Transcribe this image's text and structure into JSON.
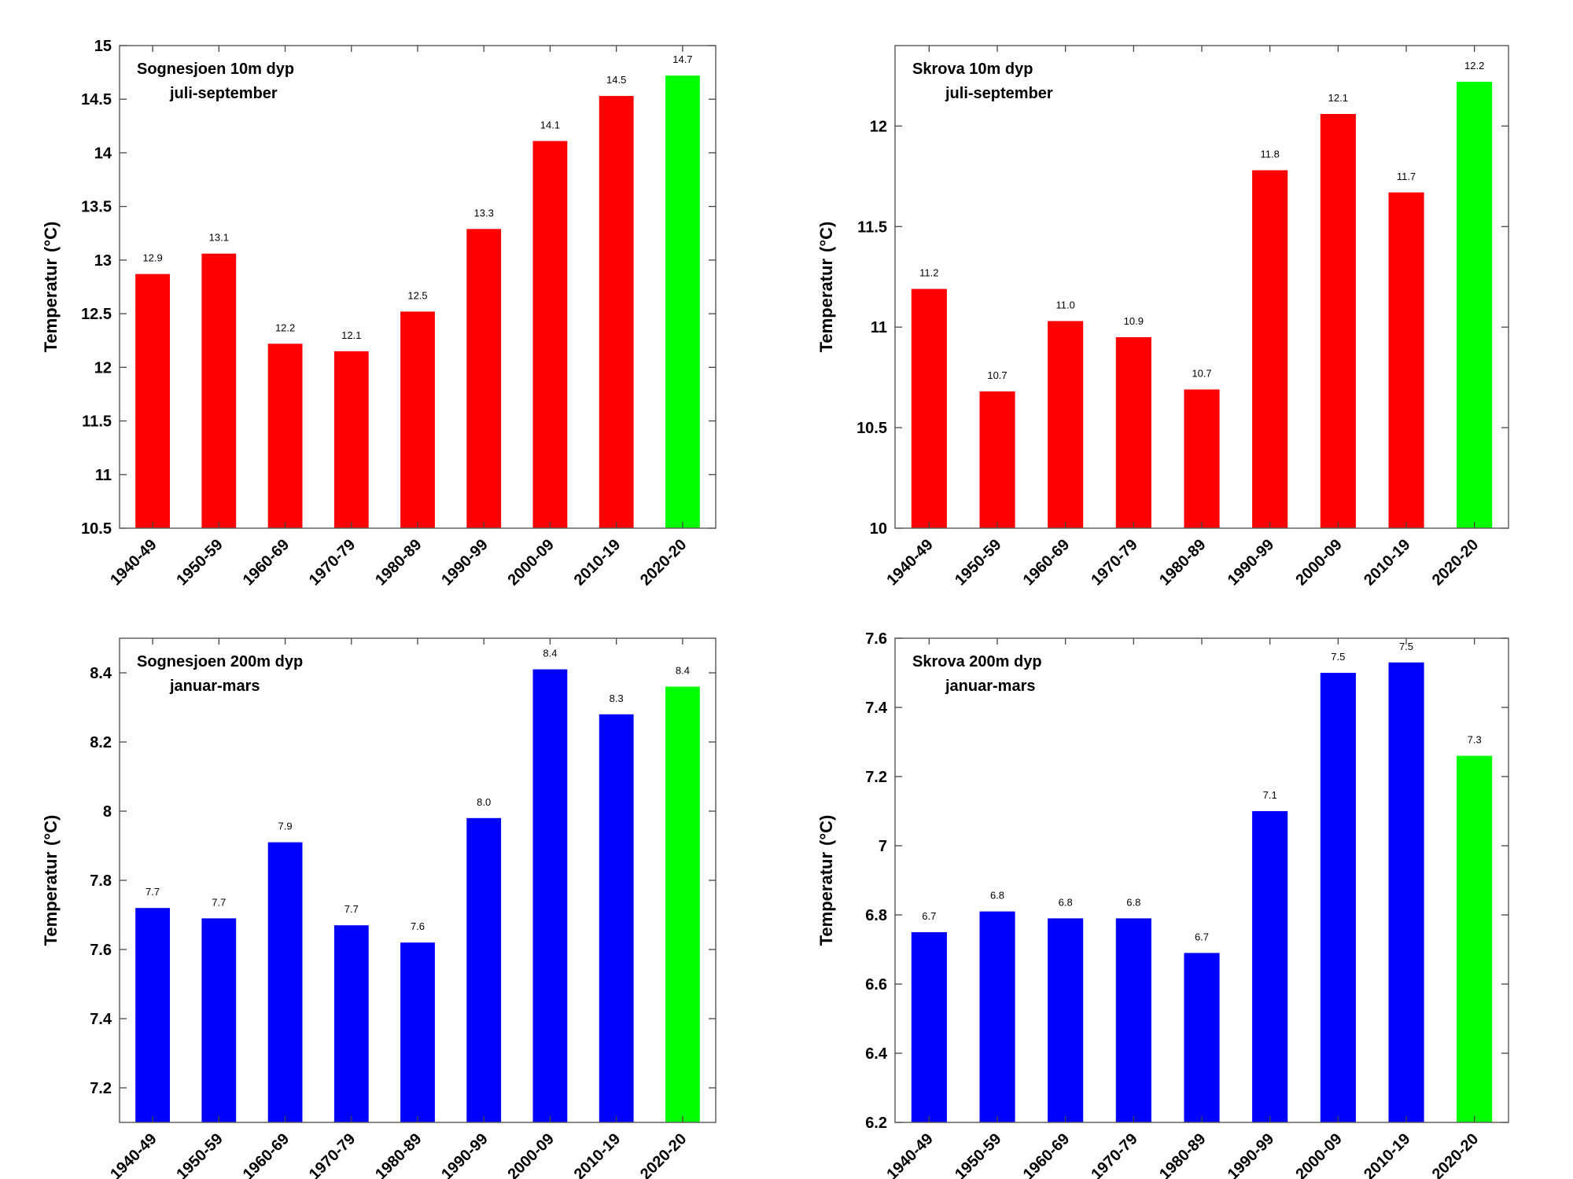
{
  "chart_data": [
    {
      "type": "bar",
      "title": "Sognesjoen 10m dyp",
      "subtitle": "juli-september",
      "ylabel": "Temperatur",
      "ylabel_unit": "(°C)",
      "ylim": [
        10.5,
        15
      ],
      "yticks": [
        "10.5",
        "11",
        "11.5",
        "12",
        "12.5",
        "13",
        "13.5",
        "14",
        "14.5",
        "15"
      ],
      "categories": [
        "1940-49",
        "1950-59",
        "1960-69",
        "1970-79",
        "1980-89",
        "1990-99",
        "2000-09",
        "2010-19",
        "2020-20"
      ],
      "values": [
        12.87,
        13.06,
        12.22,
        12.15,
        12.52,
        13.29,
        14.11,
        14.53,
        14.72
      ],
      "labels": [
        "12.9",
        "13.1",
        "12.2",
        "12.1",
        "12.5",
        "13.3",
        "14.1",
        "14.5",
        "14.7"
      ],
      "colors": [
        "#ff0000",
        "#ff0000",
        "#ff0000",
        "#ff0000",
        "#ff0000",
        "#ff0000",
        "#ff0000",
        "#ff0000",
        "#00ff00"
      ],
      "grid": false
    },
    {
      "type": "bar",
      "title": "Skrova 10m dyp",
      "subtitle": "juli-september",
      "ylabel": "Temperatur",
      "ylabel_unit": "(°C)",
      "ylim": [
        10,
        12.4
      ],
      "yticks": [
        "10",
        "10.5",
        "11",
        "11.5",
        "12"
      ],
      "categories": [
        "1940-49",
        "1950-59",
        "1960-69",
        "1970-79",
        "1980-89",
        "1990-99",
        "2000-09",
        "2010-19",
        "2020-20"
      ],
      "values": [
        11.19,
        10.68,
        11.03,
        10.95,
        10.69,
        11.78,
        12.06,
        11.67,
        12.22
      ],
      "labels": [
        "11.2",
        "10.7",
        "11.0",
        "10.9",
        "10.7",
        "11.8",
        "12.1",
        "11.7",
        "12.2"
      ],
      "colors": [
        "#ff0000",
        "#ff0000",
        "#ff0000",
        "#ff0000",
        "#ff0000",
        "#ff0000",
        "#ff0000",
        "#ff0000",
        "#00ff00"
      ],
      "grid": false
    },
    {
      "type": "bar",
      "title": "Sognesjoen 200m dyp",
      "subtitle": "januar-mars",
      "ylabel": "Temperatur",
      "ylabel_unit": "(°C)",
      "ylim": [
        7.1,
        8.5
      ],
      "yticks": [
        "7.2",
        "7.4",
        "7.6",
        "7.8",
        "8",
        "8.2",
        "8.4"
      ],
      "categories": [
        "1940-49",
        "1950-59",
        "1960-69",
        "1970-79",
        "1980-89",
        "1990-99",
        "2000-09",
        "2010-19",
        "2020-20"
      ],
      "values": [
        7.72,
        7.69,
        7.91,
        7.67,
        7.62,
        7.98,
        8.41,
        8.28,
        8.36
      ],
      "labels": [
        "7.7",
        "7.7",
        "7.9",
        "7.7",
        "7.6",
        "8.0",
        "8.4",
        "8.3",
        "8.4"
      ],
      "colors": [
        "#0000ff",
        "#0000ff",
        "#0000ff",
        "#0000ff",
        "#0000ff",
        "#0000ff",
        "#0000ff",
        "#0000ff",
        "#00ff00"
      ],
      "grid": false
    },
    {
      "type": "bar",
      "title": "Skrova 200m dyp",
      "subtitle": "januar-mars",
      "ylabel": "Temperatur",
      "ylabel_unit": "(°C)",
      "ylim": [
        6.2,
        7.6
      ],
      "yticks": [
        "6.2",
        "6.4",
        "6.6",
        "6.8",
        "7",
        "7.2",
        "7.4",
        "7.6"
      ],
      "categories": [
        "1940-49",
        "1950-59",
        "1960-69",
        "1970-79",
        "1980-89",
        "1990-99",
        "2000-09",
        "2010-19",
        "2020-20"
      ],
      "values": [
        6.75,
        6.81,
        6.79,
        6.79,
        6.69,
        7.1,
        7.5,
        7.53,
        7.26
      ],
      "labels": [
        "6.7",
        "6.8",
        "6.8",
        "6.8",
        "6.7",
        "7.1",
        "7.5",
        "7.5",
        "7.3"
      ],
      "colors": [
        "#0000ff",
        "#0000ff",
        "#0000ff",
        "#0000ff",
        "#0000ff",
        "#0000ff",
        "#0000ff",
        "#0000ff",
        "#00ff00"
      ],
      "grid": false
    }
  ]
}
